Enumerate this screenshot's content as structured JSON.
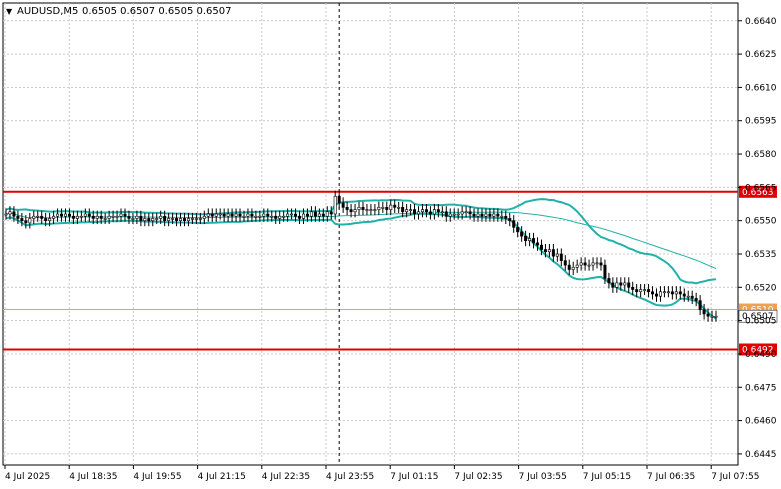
{
  "header": {
    "symbol": "AUDUSD,M5",
    "ohlc": "0.6505 0.6507 0.6505 0.6507",
    "marker": "▼"
  },
  "chart_data": {
    "type": "candlestick",
    "title": "AUDUSD,M5 0.6505 0.6507 0.6505 0.6507",
    "ylim": [
      0.644,
      0.6648
    ],
    "y_ticks": [
      "0.6640",
      "0.6625",
      "0.6610",
      "0.6595",
      "0.6580",
      "0.6565",
      "0.6550",
      "0.6535",
      "0.6520",
      "0.6505",
      "0.6490",
      "0.6475",
      "0.6460",
      "0.6445"
    ],
    "x_ticks": [
      "4 Jul 2025",
      "4 Jul 18:35",
      "4 Jul 19:55",
      "4 Jul 21:15",
      "4 Jul 22:35",
      "4 Jul 23:55",
      "7 Jul 01:15",
      "7 Jul 02:35",
      "7 Jul 03:55",
      "7 Jul 05:15",
      "7 Jul 06:35",
      "7 Jul 07:55"
    ],
    "grid": true,
    "colors": {
      "background": "#ffffff",
      "grid": "#c8c8c8",
      "candles": "#000000",
      "bands": "#20b2aa",
      "resistance": "#e00000",
      "current_line": "#f0a050",
      "ma": "#20b2aa"
    },
    "horizontal_levels": [
      {
        "value": 0.6563,
        "label": "0.6563",
        "color": "#e00000"
      },
      {
        "value": 0.651,
        "label": "0.6510",
        "color": "#f0a050"
      },
      {
        "value": 0.6492,
        "label": "0.6492",
        "color": "#e00000"
      }
    ],
    "current_price": {
      "value": 0.6507,
      "label": "0.6507"
    },
    "session_divider_index": 84,
    "close": [
      0.6553,
      0.6554,
      0.6552,
      0.6551,
      0.655,
      0.6549,
      0.6551,
      0.6552,
      0.6552,
      0.6551,
      0.655,
      0.6551,
      0.6552,
      0.6553,
      0.6552,
      0.6553,
      0.6552,
      0.6551,
      0.6552,
      0.6552,
      0.6553,
      0.6552,
      0.6551,
      0.6552,
      0.6551,
      0.6551,
      0.6552,
      0.6552,
      0.6552,
      0.6553,
      0.6552,
      0.6551,
      0.6551,
      0.6552,
      0.655,
      0.6551,
      0.655,
      0.6551,
      0.6551,
      0.6552,
      0.655,
      0.6551,
      0.6551,
      0.655,
      0.6551,
      0.655,
      0.6551,
      0.6551,
      0.6551,
      0.6551,
      0.6552,
      0.6553,
      0.6552,
      0.6553,
      0.6553,
      0.6552,
      0.6553,
      0.6552,
      0.6553,
      0.6552,
      0.6552,
      0.6553,
      0.6552,
      0.6552,
      0.6552,
      0.6553,
      0.6552,
      0.6552,
      0.6551,
      0.6552,
      0.6552,
      0.6553,
      0.6553,
      0.6552,
      0.6551,
      0.6553,
      0.6552,
      0.6554,
      0.6552,
      0.6553,
      0.6552,
      0.6554,
      0.6553,
      0.6561,
      0.6558,
      0.6556,
      0.6555,
      0.6554,
      0.6555,
      0.6556,
      0.6555,
      0.6555,
      0.6555,
      0.6555,
      0.6556,
      0.6556,
      0.6555,
      0.6557,
      0.6556,
      0.6556,
      0.6554,
      0.6555,
      0.6555,
      0.6553,
      0.6554,
      0.6555,
      0.6554,
      0.6553,
      0.6555,
      0.6554,
      0.6554,
      0.6552,
      0.6553,
      0.6553,
      0.6553,
      0.6554,
      0.6554,
      0.6553,
      0.6552,
      0.6553,
      0.6552,
      0.6553,
      0.6552,
      0.6553,
      0.6552,
      0.6552,
      0.6551,
      0.655,
      0.6547,
      0.6545,
      0.6543,
      0.6541,
      0.6542,
      0.654,
      0.6539,
      0.6537,
      0.6536,
      0.6537,
      0.6534,
      0.6535,
      0.6532,
      0.653,
      0.6528,
      0.6529,
      0.653,
      0.6531,
      0.653,
      0.653,
      0.6531,
      0.6531,
      0.653,
      0.6524,
      0.6522,
      0.652,
      0.6522,
      0.6521,
      0.6522,
      0.652,
      0.6519,
      0.6518,
      0.6519,
      0.6519,
      0.6518,
      0.6517,
      0.6516,
      0.6518,
      0.6518,
      0.6518,
      0.6517,
      0.6518,
      0.6517,
      0.6516,
      0.6516,
      0.6515,
      0.6514,
      0.651,
      0.6508,
      0.6507,
      0.6507,
      0.6507
    ]
  }
}
